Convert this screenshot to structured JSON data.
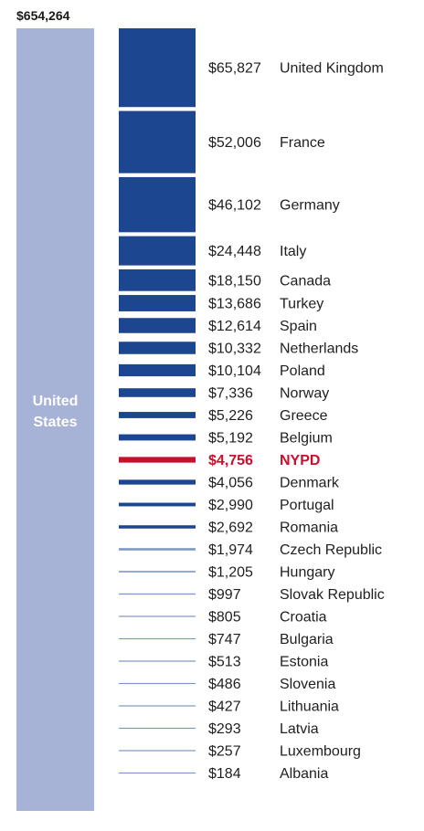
{
  "colors": {
    "us_bar": "#a6b2d6",
    "country_bar": "#1d4690",
    "thin_line": "#7f97c6",
    "highlight": "#c8102e"
  },
  "chart_data": {
    "type": "bar",
    "orientation": "stacked-column-comparison",
    "united_states": {
      "label_lines": [
        "United",
        "States"
      ],
      "value": 654264,
      "value_label": "$654,264"
    },
    "categories": [
      "United Kingdom",
      "France",
      "Germany",
      "Italy",
      "Canada",
      "Turkey",
      "Spain",
      "Netherlands",
      "Poland",
      "Norway",
      "Greece",
      "Belgium",
      "NYPD",
      "Denmark",
      "Portugal",
      "Romania",
      "Czech Republic",
      "Hungary",
      "Slovak Republic",
      "Croatia",
      "Bulgaria",
      "Estonia",
      "Slovenia",
      "Lithuania",
      "Latvia",
      "Luxembourg",
      "Albania"
    ],
    "values": [
      65827,
      52006,
      46102,
      24448,
      18150,
      13686,
      12614,
      10332,
      10104,
      7336,
      5226,
      5192,
      4756,
      4056,
      2990,
      2692,
      1974,
      1205,
      997,
      805,
      747,
      513,
      486,
      427,
      293,
      257,
      184
    ],
    "value_labels": [
      "$65,827",
      "$52,006",
      "$46,102",
      "$24,448",
      "$18,150",
      "$13,686",
      "$12,614",
      "$10,332",
      "$10,104",
      "$7,336",
      "$5,226",
      "$5,192",
      "$4,756",
      "$4,056",
      "$2,990",
      "$2,692",
      "$1,974",
      "$1,205",
      "$997",
      "$805",
      "$747",
      "$513",
      "$486",
      "$427",
      "$293",
      "$257",
      "$184"
    ],
    "highlight": "NYPD"
  }
}
